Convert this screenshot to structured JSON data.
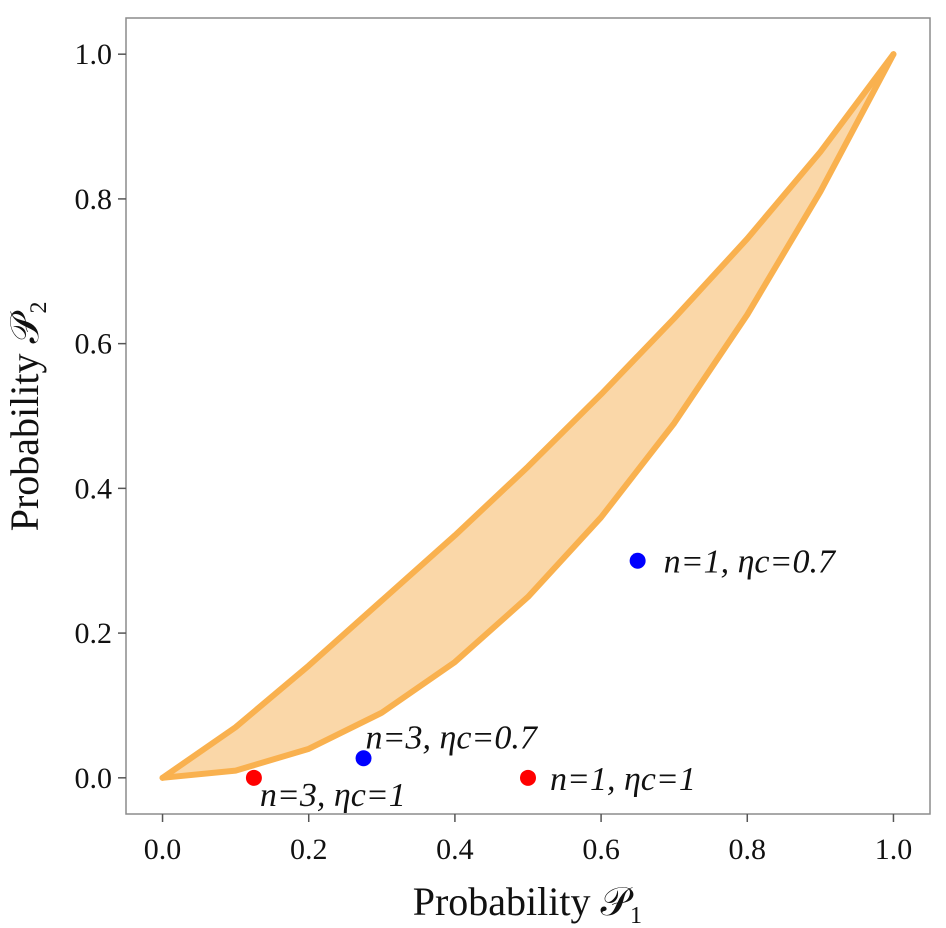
{
  "chart_data": {
    "type": "area",
    "xlabel": "Probability 𝒫₁",
    "ylabel": "Probability 𝒫₂",
    "xlim": [
      -0.05,
      1.05
    ],
    "ylim": [
      -0.05,
      1.05
    ],
    "x_ticks": [
      "0.0",
      "0.2",
      "0.4",
      "0.6",
      "0.8",
      "1.0"
    ],
    "y_ticks": [
      "0.0",
      "0.2",
      "0.4",
      "0.6",
      "0.8",
      "1.0"
    ],
    "grid": false,
    "region": {
      "upper_boundary": {
        "x": [
          0.0,
          0.1,
          0.2,
          0.3,
          0.4,
          0.5,
          0.6,
          0.7,
          0.8,
          0.9,
          1.0
        ],
        "y": [
          0.0,
          0.07,
          0.155,
          0.245,
          0.335,
          0.43,
          0.53,
          0.635,
          0.745,
          0.865,
          1.0
        ]
      },
      "lower_boundary": {
        "x": [
          0.0,
          0.1,
          0.2,
          0.3,
          0.4,
          0.5,
          0.6,
          0.7,
          0.8,
          0.9,
          1.0
        ],
        "y": [
          0.0,
          0.01,
          0.04,
          0.09,
          0.16,
          0.25,
          0.36,
          0.49,
          0.64,
          0.81,
          1.0
        ]
      },
      "fill_color": "#fad7a8",
      "line_color": "#f9b14f"
    },
    "points": [
      {
        "x": 0.65,
        "y": 0.3,
        "color": "#0000ff",
        "label": "n=1, ηc=0.7"
      },
      {
        "x": 0.275,
        "y": 0.027,
        "color": "#0000ff",
        "label": "n=3, ηc=0.7"
      },
      {
        "x": 0.125,
        "y": 0.0,
        "color": "#ff0000",
        "label": "n=3, ηc=1"
      },
      {
        "x": 0.5,
        "y": 0.0,
        "color": "#ff0000",
        "label": "n=1, ηc=1"
      }
    ]
  }
}
